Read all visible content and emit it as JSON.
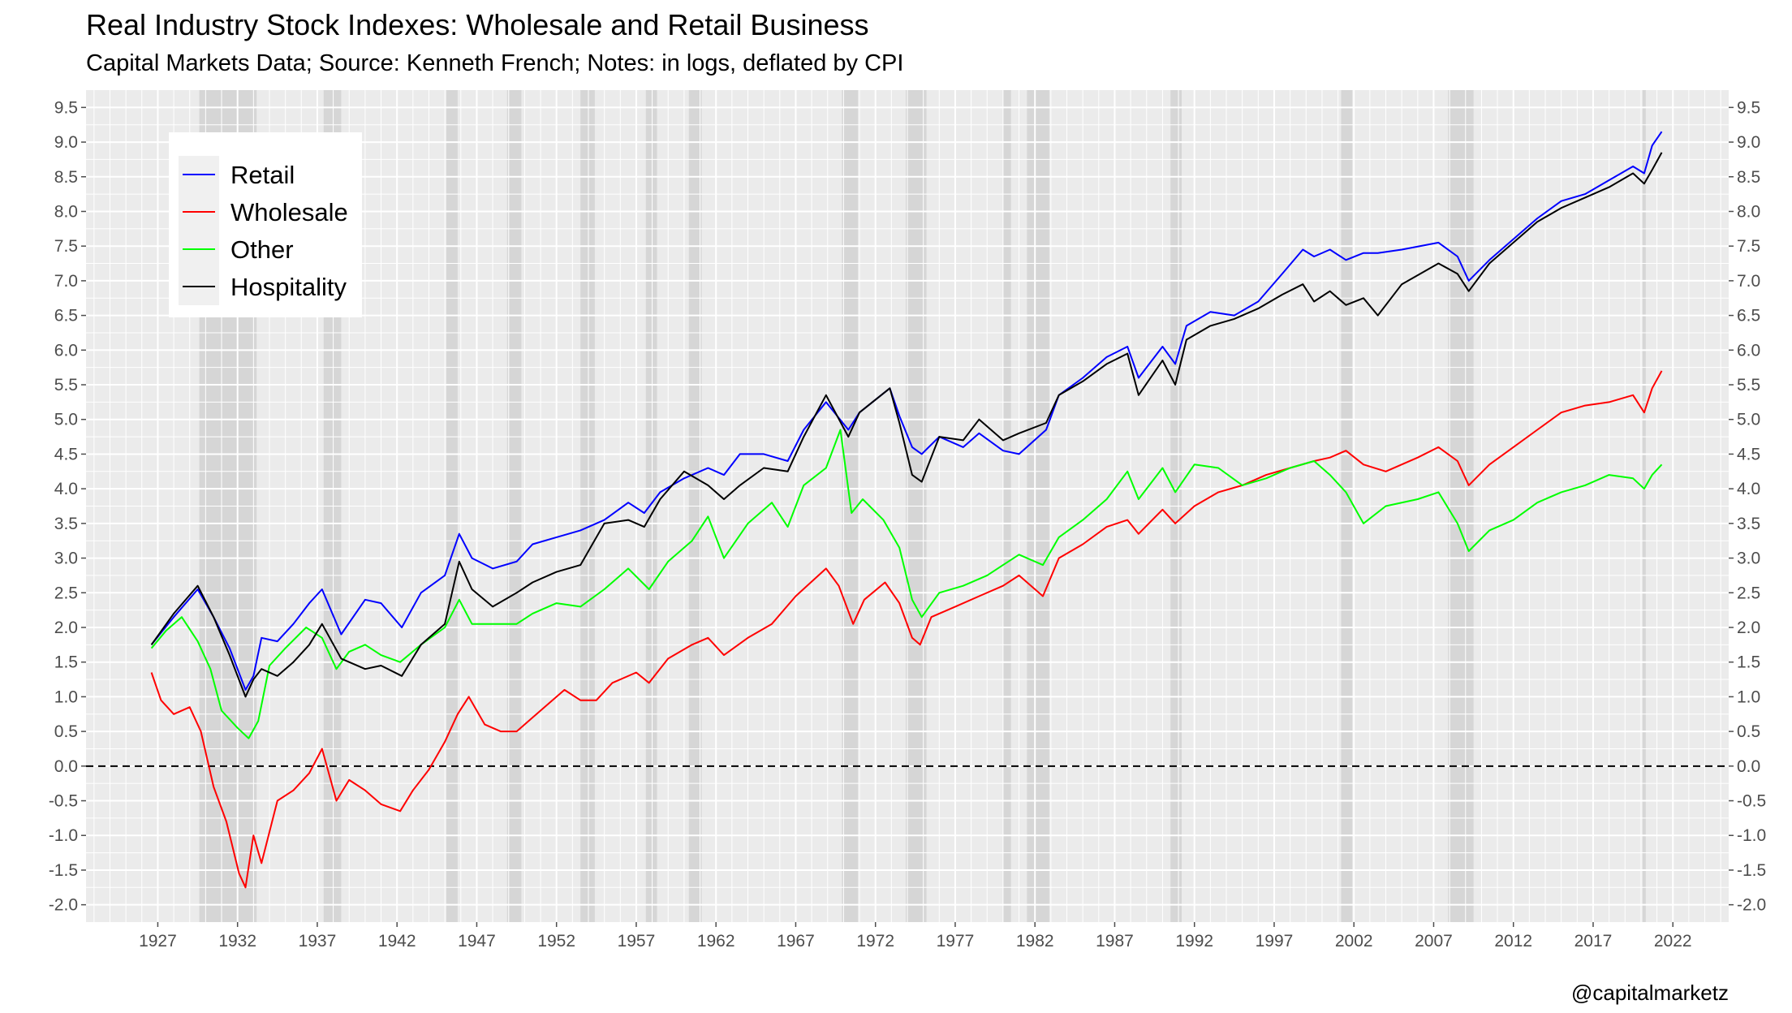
{
  "title": "Real Industry Stock Indexes: Wholesale and Retail Business",
  "subtitle": "Capital Markets Data; Source: Kenneth French; Notes: in logs, deflated by CPI",
  "credit": "@capitalmarketz",
  "chart_data": {
    "type": "line",
    "title": "Real Industry Stock Indexes: Wholesale and Retail Business",
    "subtitle": "Capital Markets Data; Source: Kenneth French; Notes: in logs, deflated by CPI",
    "xlabel": "",
    "ylabel": "",
    "xlim": [
      1922.5,
      2025.5
    ],
    "ylim": [
      -2.25,
      9.75
    ],
    "x_ticks": [
      1927,
      1932,
      1937,
      1942,
      1947,
      1952,
      1957,
      1962,
      1967,
      1972,
      1977,
      1982,
      1987,
      1992,
      1997,
      2002,
      2007,
      2012,
      2017,
      2022
    ],
    "x_tick_labels": [
      "1927",
      "1932",
      "1937",
      "1942",
      "1947",
      "1952",
      "1957",
      "1962",
      "1967",
      "1972",
      "1977",
      "1982",
      "1987",
      "1992",
      "1997",
      "2002",
      "2007",
      "2012",
      "2017",
      "2022"
    ],
    "y_ticks": [
      -2.0,
      -1.5,
      -1.0,
      -0.5,
      0.0,
      0.5,
      1.0,
      1.5,
      2.0,
      2.5,
      3.0,
      3.5,
      4.0,
      4.5,
      5.0,
      5.5,
      6.0,
      6.5,
      7.0,
      7.5,
      8.0,
      8.5,
      9.0,
      9.5
    ],
    "y_tick_labels": [
      "-2.0",
      "-1.5",
      "-1.0",
      "-0.5",
      "0.0",
      "0.5",
      "1.0",
      "1.5",
      "2.0",
      "2.5",
      "3.0",
      "3.5",
      "4.0",
      "4.5",
      "5.0",
      "5.5",
      "6.0",
      "6.5",
      "7.0",
      "7.5",
      "8.0",
      "8.5",
      "9.0",
      "9.5"
    ],
    "y_axis_sides": [
      "left",
      "right"
    ],
    "grid": true,
    "panel_background": "#ebebeb",
    "reference_line": {
      "y": 0.0,
      "style": "dashed",
      "color": "#000000"
    },
    "recession_shading": [
      [
        1929.6,
        1933.2
      ],
      [
        1937.4,
        1938.5
      ],
      [
        1945.1,
        1945.8
      ],
      [
        1948.9,
        1949.8
      ],
      [
        1953.5,
        1954.4
      ],
      [
        1957.6,
        1958.3
      ],
      [
        1960.3,
        1961.1
      ],
      [
        1969.9,
        1970.9
      ],
      [
        1973.9,
        1975.2
      ],
      [
        1980.0,
        1980.5
      ],
      [
        1981.5,
        1982.9
      ],
      [
        1990.5,
        1991.2
      ],
      [
        2001.2,
        2001.9
      ],
      [
        2007.9,
        2009.5
      ],
      [
        2020.1,
        2020.3
      ]
    ],
    "legend": {
      "placement": "top-left",
      "entries": [
        "Retail",
        "Wholesale",
        "Other",
        "Hospitality"
      ]
    },
    "series": [
      {
        "name": "Retail",
        "color": "#0000ff",
        "x": [
          1926.6,
          1928,
          1929.5,
          1930.5,
          1931.5,
          1932.5,
          1933,
          1933.5,
          1934.5,
          1935.5,
          1936.5,
          1937.3,
          1938.5,
          1940,
          1941,
          1942.3,
          1943.5,
          1945,
          1945.9,
          1946.7,
          1948,
          1949.5,
          1950.5,
          1952,
          1953.5,
          1955,
          1956.5,
          1957.5,
          1958.5,
          1960,
          1961.5,
          1962.5,
          1963.5,
          1965,
          1966.5,
          1967.5,
          1968.9,
          1970.3,
          1971,
          1972.9,
          1973.5,
          1974.3,
          1974.9,
          1976,
          1977.5,
          1978.5,
          1980,
          1981,
          1982.7,
          1983.5,
          1985,
          1986.5,
          1987.8,
          1988.5,
          1990,
          1990.8,
          1991.5,
          1993,
          1994.5,
          1996,
          1997.5,
          1998.8,
          1999.5,
          2000.5,
          2001.5,
          2002.6,
          2003.5,
          2005,
          2007.3,
          2008.5,
          2009.2,
          2010.5,
          2012,
          2013.5,
          2015,
          2016.5,
          2018,
          2019.5,
          2020.2,
          2020.7,
          2021.3
        ],
        "y": [
          1.75,
          2.15,
          2.55,
          2.15,
          1.7,
          1.1,
          1.3,
          1.85,
          1.8,
          2.05,
          2.35,
          2.55,
          1.9,
          2.4,
          2.35,
          2.0,
          2.5,
          2.75,
          3.35,
          3.0,
          2.85,
          2.95,
          3.2,
          3.3,
          3.4,
          3.55,
          3.8,
          3.65,
          3.95,
          4.15,
          4.3,
          4.2,
          4.5,
          4.5,
          4.4,
          4.85,
          5.25,
          4.85,
          5.1,
          5.45,
          5.05,
          4.6,
          4.5,
          4.75,
          4.6,
          4.8,
          4.55,
          4.5,
          4.85,
          5.35,
          5.6,
          5.9,
          6.05,
          5.6,
          6.05,
          5.8,
          6.35,
          6.55,
          6.5,
          6.7,
          7.1,
          7.45,
          7.35,
          7.45,
          7.3,
          7.4,
          7.4,
          7.45,
          7.55,
          7.35,
          7.0,
          7.3,
          7.6,
          7.9,
          8.15,
          8.25,
          8.45,
          8.65,
          8.55,
          8.95,
          9.15
        ]
      },
      {
        "name": "Wholesale",
        "color": "#ff0000",
        "x": [
          1926.6,
          1927.2,
          1928,
          1929,
          1929.7,
          1930.5,
          1931.3,
          1932.1,
          1932.5,
          1933,
          1933.5,
          1934.5,
          1935.5,
          1936.5,
          1937.3,
          1938.2,
          1939,
          1940,
          1941,
          1942.2,
          1943,
          1944,
          1945,
          1945.8,
          1946.5,
          1947.5,
          1948.5,
          1949.5,
          1950.5,
          1951.5,
          1952.5,
          1953.5,
          1954.5,
          1955.5,
          1957,
          1957.8,
          1959,
          1960.5,
          1961.5,
          1962.5,
          1964,
          1965.5,
          1967,
          1968.9,
          1969.7,
          1970.6,
          1971.3,
          1972.6,
          1973.5,
          1974.3,
          1974.8,
          1975.5,
          1977,
          1978.5,
          1980,
          1981,
          1982.5,
          1983.5,
          1985,
          1986.5,
          1987.8,
          1988.5,
          1990,
          1990.8,
          1992,
          1993.5,
          1995,
          1996.5,
          1998,
          1999.5,
          2000.5,
          2001.5,
          2002.6,
          2004,
          2006,
          2007.3,
          2008.5,
          2009.2,
          2010.5,
          2012,
          2013.5,
          2015,
          2016.5,
          2018,
          2019.5,
          2020.2,
          2020.7,
          2021.3
        ],
        "y": [
          1.35,
          0.95,
          0.75,
          0.85,
          0.5,
          -0.3,
          -0.8,
          -1.55,
          -1.75,
          -1.0,
          -1.4,
          -0.5,
          -0.35,
          -0.1,
          0.25,
          -0.5,
          -0.2,
          -0.35,
          -0.55,
          -0.65,
          -0.35,
          -0.05,
          0.35,
          0.75,
          1.0,
          0.6,
          0.5,
          0.5,
          0.7,
          0.9,
          1.1,
          0.95,
          0.95,
          1.2,
          1.35,
          1.2,
          1.55,
          1.75,
          1.85,
          1.6,
          1.85,
          2.05,
          2.45,
          2.85,
          2.6,
          2.05,
          2.4,
          2.65,
          2.35,
          1.85,
          1.75,
          2.15,
          2.3,
          2.45,
          2.6,
          2.75,
          2.45,
          3.0,
          3.2,
          3.45,
          3.55,
          3.35,
          3.7,
          3.5,
          3.75,
          3.95,
          4.05,
          4.2,
          4.3,
          4.4,
          4.45,
          4.55,
          4.35,
          4.25,
          4.45,
          4.6,
          4.4,
          4.05,
          4.35,
          4.6,
          4.85,
          5.1,
          5.2,
          5.25,
          5.35,
          5.1,
          5.45,
          5.7
        ]
      },
      {
        "name": "Other",
        "color": "#00ff00",
        "x": [
          1926.6,
          1927.5,
          1928.5,
          1929.5,
          1930.3,
          1931,
          1932,
          1932.7,
          1933.3,
          1934,
          1935,
          1936.3,
          1937.3,
          1938.2,
          1939,
          1940,
          1941,
          1942.2,
          1943.5,
          1945,
          1945.9,
          1946.7,
          1948,
          1949.5,
          1950.5,
          1952,
          1953.5,
          1955,
          1956.5,
          1957.8,
          1959,
          1960.5,
          1961.5,
          1962.5,
          1964,
          1965.5,
          1966.5,
          1967.5,
          1968.9,
          1969.8,
          1970.5,
          1971.2,
          1972.5,
          1973.5,
          1974.3,
          1974.9,
          1976,
          1977.5,
          1979,
          1980,
          1981,
          1982.5,
          1983.5,
          1985,
          1986.5,
          1987.8,
          1988.5,
          1990,
          1990.8,
          1992,
          1993.5,
          1995,
          1996.5,
          1998,
          1999.5,
          2000.5,
          2001.5,
          2002.6,
          2004,
          2006,
          2007.3,
          2008.5,
          2009.2,
          2010.5,
          2012,
          2013.5,
          2015,
          2016.5,
          2018,
          2019.5,
          2020.2,
          2020.7,
          2021.3
        ],
        "y": [
          1.7,
          1.95,
          2.15,
          1.8,
          1.4,
          0.8,
          0.55,
          0.4,
          0.65,
          1.45,
          1.7,
          2.0,
          1.85,
          1.4,
          1.65,
          1.75,
          1.6,
          1.5,
          1.75,
          2.0,
          2.4,
          2.05,
          2.05,
          2.05,
          2.2,
          2.35,
          2.3,
          2.55,
          2.85,
          2.55,
          2.95,
          3.25,
          3.6,
          3.0,
          3.5,
          3.8,
          3.45,
          4.05,
          4.3,
          4.85,
          3.65,
          3.85,
          3.55,
          3.15,
          2.4,
          2.15,
          2.5,
          2.6,
          2.75,
          2.9,
          3.05,
          2.9,
          3.3,
          3.55,
          3.85,
          4.25,
          3.85,
          4.3,
          3.95,
          4.35,
          4.3,
          4.05,
          4.15,
          4.3,
          4.4,
          4.2,
          3.95,
          3.5,
          3.75,
          3.85,
          3.95,
          3.5,
          3.1,
          3.4,
          3.55,
          3.8,
          3.95,
          4.05,
          4.2,
          4.15,
          4.0,
          4.2,
          4.35
        ]
      },
      {
        "name": "Hospitality",
        "color": "#000000",
        "x": [
          1926.6,
          1928,
          1929.5,
          1930.5,
          1931.5,
          1932.5,
          1933,
          1933.5,
          1934.5,
          1935.5,
          1936.5,
          1937.3,
          1938.5,
          1940,
          1941,
          1942.3,
          1943.5,
          1945,
          1945.9,
          1946.7,
          1948,
          1949.5,
          1950.5,
          1952,
          1953.5,
          1955,
          1956.5,
          1957.5,
          1958.5,
          1960,
          1961.5,
          1962.5,
          1963.5,
          1965,
          1966.5,
          1967.5,
          1968.9,
          1970.3,
          1971,
          1972.9,
          1973.5,
          1974.3,
          1974.9,
          1976,
          1977.5,
          1978.5,
          1980,
          1981,
          1982.7,
          1983.5,
          1985,
          1986.5,
          1987.8,
          1988.5,
          1990,
          1990.8,
          1991.5,
          1993,
          1994.5,
          1996,
          1997.5,
          1998.8,
          1999.5,
          2000.5,
          2001.5,
          2002.6,
          2003.5,
          2005,
          2007.3,
          2008.5,
          2009.2,
          2010.5,
          2012,
          2013.5,
          2015,
          2016.5,
          2018,
          2019.5,
          2020.2,
          2020.7,
          2021.3
        ],
        "y": [
          1.75,
          2.2,
          2.6,
          2.15,
          1.6,
          1.0,
          1.25,
          1.4,
          1.3,
          1.5,
          1.75,
          2.05,
          1.55,
          1.4,
          1.45,
          1.3,
          1.75,
          2.05,
          2.95,
          2.55,
          2.3,
          2.5,
          2.65,
          2.8,
          2.9,
          3.5,
          3.55,
          3.45,
          3.85,
          4.25,
          4.05,
          3.85,
          4.05,
          4.3,
          4.25,
          4.75,
          5.35,
          4.75,
          5.1,
          5.45,
          4.95,
          4.2,
          4.1,
          4.75,
          4.7,
          5.0,
          4.7,
          4.8,
          4.95,
          5.35,
          5.55,
          5.8,
          5.95,
          5.35,
          5.85,
          5.5,
          6.15,
          6.35,
          6.45,
          6.6,
          6.8,
          6.95,
          6.7,
          6.85,
          6.65,
          6.75,
          6.5,
          6.95,
          7.25,
          7.1,
          6.85,
          7.25,
          7.55,
          7.85,
          8.05,
          8.2,
          8.35,
          8.55,
          8.4,
          8.6,
          8.85
        ]
      }
    ]
  }
}
